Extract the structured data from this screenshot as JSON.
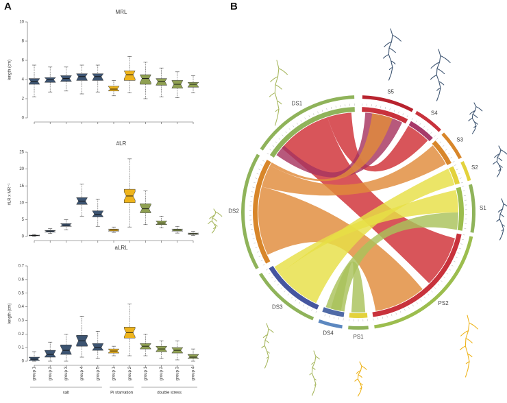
{
  "panel_labels": [
    "A",
    "B"
  ],
  "chart_data": [
    {
      "type": "boxplot",
      "title": "MRL",
      "y_label": "length (cm)",
      "ylim": [
        0,
        10
      ],
      "yticks": [
        0,
        2,
        4,
        6,
        8,
        10
      ],
      "series": [
        {
          "color": "#3d5471",
          "boxes": [
            {
              "min": 2.2,
              "q1": 3.5,
              "median": 3.8,
              "q3": 4.1,
              "max": 5.5
            },
            {
              "min": 2.7,
              "q1": 3.7,
              "median": 4.0,
              "q3": 4.2,
              "max": 5.3
            },
            {
              "min": 2.8,
              "q1": 3.8,
              "median": 4.1,
              "q3": 4.4,
              "max": 5.3
            },
            {
              "min": 2.5,
              "q1": 3.9,
              "median": 4.3,
              "q3": 4.6,
              "max": 5.5
            },
            {
              "min": 2.7,
              "q1": 3.9,
              "median": 4.3,
              "q3": 4.6,
              "max": 5.5
            }
          ]
        },
        {
          "color": "#eeb41c",
          "boxes": [
            {
              "min": 2.3,
              "q1": 2.8,
              "median": 3.0,
              "q3": 3.3,
              "max": 3.9
            },
            {
              "min": 2.6,
              "q1": 3.9,
              "median": 4.5,
              "q3": 4.9,
              "max": 6.4
            }
          ]
        },
        {
          "color": "#8fa052",
          "boxes": [
            {
              "min": 2.0,
              "q1": 3.5,
              "median": 4.1,
              "q3": 4.5,
              "max": 5.8
            },
            {
              "min": 2.2,
              "q1": 3.4,
              "median": 3.8,
              "q3": 4.1,
              "max": 5.2
            },
            {
              "min": 2.1,
              "q1": 3.1,
              "median": 3.5,
              "q3": 3.9,
              "max": 4.8
            },
            {
              "min": 2.6,
              "q1": 3.2,
              "median": 3.5,
              "q3": 3.7,
              "max": 4.4
            }
          ]
        }
      ]
    },
    {
      "type": "boxplot",
      "title": "#LR",
      "y_label": "#LR x MR⁻¹",
      "ylim": [
        0,
        25
      ],
      "yticks": [
        0,
        5,
        10,
        15,
        20,
        25
      ],
      "series": [
        {
          "color": "#3d5471",
          "boxes": [
            {
              "min": 0,
              "q1": 0.2,
              "median": 0.3,
              "q3": 0.4,
              "max": 0.6
            },
            {
              "min": 0.9,
              "q1": 1.3,
              "median": 1.6,
              "q3": 1.8,
              "max": 2.3
            },
            {
              "min": 2.0,
              "q1": 3.0,
              "median": 3.4,
              "q3": 3.8,
              "max": 5.0
            },
            {
              "min": 6.0,
              "q1": 9.5,
              "median": 10.5,
              "q3": 11.5,
              "max": 15.5
            },
            {
              "min": 3.0,
              "q1": 5.8,
              "median": 6.6,
              "q3": 7.6,
              "max": 11.0
            }
          ]
        },
        {
          "color": "#eeb41c",
          "boxes": [
            {
              "min": 1.2,
              "q1": 1.6,
              "median": 1.9,
              "q3": 2.2,
              "max": 2.8
            },
            {
              "min": 2.8,
              "q1": 10,
              "median": 12,
              "q3": 14,
              "max": 23
            }
          ]
        },
        {
          "color": "#8fa052",
          "boxes": [
            {
              "min": 3.5,
              "q1": 7.0,
              "median": 8.2,
              "q3": 9.7,
              "max": 13.5
            },
            {
              "min": 2.5,
              "q1": 3.5,
              "median": 4.0,
              "q3": 4.6,
              "max": 6.0
            },
            {
              "min": 1.0,
              "q1": 1.6,
              "median": 1.9,
              "q3": 2.2,
              "max": 3.0
            },
            {
              "min": 0.3,
              "q1": 0.6,
              "median": 0.8,
              "q3": 1.0,
              "max": 1.5
            }
          ]
        }
      ]
    },
    {
      "type": "boxplot",
      "title": "aLRL",
      "y_label": "length (cm)",
      "ylim": [
        0,
        0.7
      ],
      "yticks": [
        0,
        0.1,
        0.2,
        0.3,
        0.4,
        0.5,
        0.6,
        0.7
      ],
      "categories": [
        "group 1",
        "group 2",
        "group 3",
        "group 4",
        "group 5",
        "group 1",
        "group 2",
        "group 1",
        "group 2",
        "group 3",
        "group 4"
      ],
      "series": [
        {
          "name": "salt",
          "color": "#3d5471",
          "boxes": [
            {
              "min": 0,
              "q1": 0.005,
              "median": 0.015,
              "q3": 0.03,
              "max": 0.07
            },
            {
              "min": 0,
              "q1": 0.03,
              "median": 0.05,
              "q3": 0.08,
              "max": 0.14
            },
            {
              "min": 0,
              "q1": 0.05,
              "median": 0.08,
              "q3": 0.12,
              "max": 0.2
            },
            {
              "min": 0.03,
              "q1": 0.11,
              "median": 0.15,
              "q3": 0.19,
              "max": 0.33
            },
            {
              "min": 0.02,
              "q1": 0.08,
              "median": 0.1,
              "q3": 0.13,
              "max": 0.22
            }
          ]
        },
        {
          "name": "Pi starvation",
          "color": "#eeb41c",
          "boxes": [
            {
              "min": 0.04,
              "q1": 0.06,
              "median": 0.075,
              "q3": 0.09,
              "max": 0.11
            },
            {
              "min": 0.04,
              "q1": 0.17,
              "median": 0.21,
              "q3": 0.25,
              "max": 0.42
            }
          ]
        },
        {
          "name": "double stress",
          "color": "#8fa052",
          "boxes": [
            {
              "min": 0.04,
              "q1": 0.09,
              "median": 0.11,
              "q3": 0.13,
              "max": 0.2
            },
            {
              "min": 0.02,
              "q1": 0.07,
              "median": 0.09,
              "q3": 0.11,
              "max": 0.15
            },
            {
              "min": 0.01,
              "q1": 0.06,
              "median": 0.08,
              "q3": 0.1,
              "max": 0.15
            },
            {
              "min": 0,
              "q1": 0.02,
              "median": 0.03,
              "q3": 0.05,
              "max": 0.09
            }
          ]
        }
      ]
    }
  ],
  "chord_diagram": {
    "segments": [
      "S5",
      "S4",
      "S3",
      "S2",
      "S1",
      "PS2",
      "PS1",
      "DS4",
      "DS3",
      "DS2",
      "DS1"
    ]
  }
}
